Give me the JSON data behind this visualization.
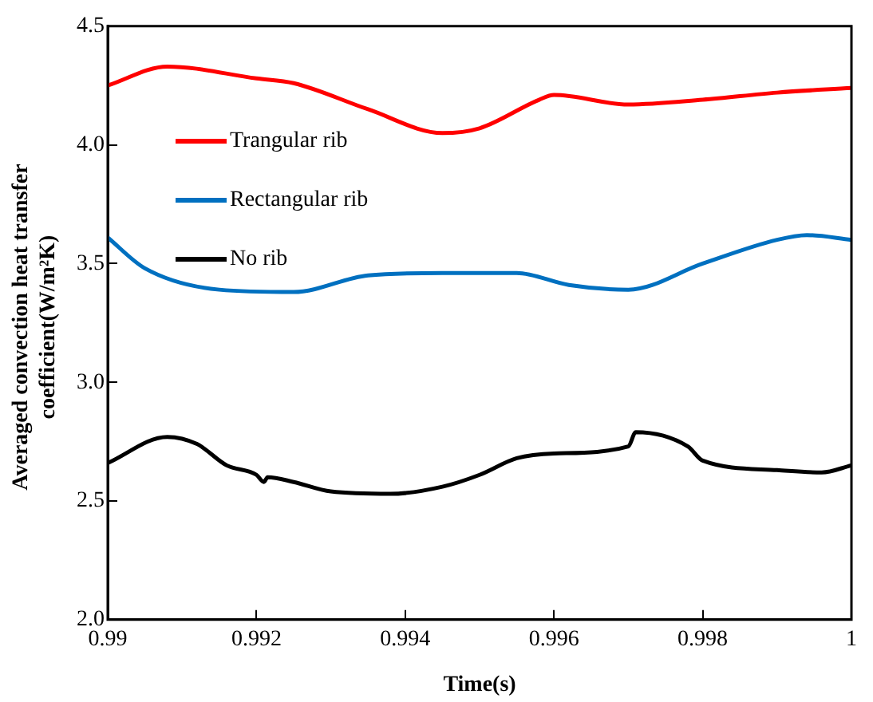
{
  "chart_data": {
    "type": "line",
    "xlabel": "Time(s)",
    "ylabel": "Averaged convection heat transfer coefficient(W/m²K)",
    "xlim": [
      0.99,
      1
    ],
    "xticks": [
      0.99,
      0.992,
      0.994,
      0.996,
      0.998,
      1
    ],
    "ylim": [
      2.0,
      4.5
    ],
    "yticks": [
      {
        "value": 2,
        "label": "2.0"
      },
      {
        "value": 2.5,
        "label": "2.5"
      },
      {
        "value": 3,
        "label": "3.0"
      },
      {
        "value": 3.5,
        "label": "3.5"
      },
      {
        "value": 4,
        "label": "4.0"
      },
      {
        "value": 4.5,
        "label": "4.5"
      }
    ],
    "grid": false,
    "legend": "top left",
    "marker": "none",
    "line_style": "solid",
    "series": [
      {
        "name": "Trangular rib",
        "color": "#ff0000",
        "x": [
          0.99,
          0.9908,
          0.992,
          0.9925,
          0.9935,
          0.9945,
          0.995,
          0.9958,
          0.996,
          0.997,
          0.998,
          0.999,
          1.0
        ],
        "values": [
          4.25,
          4.33,
          4.28,
          4.26,
          4.15,
          4.05,
          4.07,
          4.19,
          4.21,
          4.17,
          4.19,
          4.22,
          4.24
        ]
      },
      {
        "name": "Rectangular rib",
        "color": "#0070c0",
        "x": [
          0.99,
          0.9905,
          0.9915,
          0.9925,
          0.9935,
          0.9945,
          0.9955,
          0.9962,
          0.997,
          0.998,
          0.999,
          0.9994,
          1.0
        ],
        "values": [
          3.61,
          3.48,
          3.39,
          3.38,
          3.45,
          3.46,
          3.46,
          3.41,
          3.39,
          3.5,
          3.6,
          3.62,
          3.6
        ]
      },
      {
        "name": "No rib",
        "color": "#000000",
        "x": [
          0.99,
          0.9908,
          0.9912,
          0.9916,
          0.992,
          0.9921,
          0.99215,
          0.9925,
          0.993,
          0.9938,
          0.9945,
          0.995,
          0.9955,
          0.996,
          0.997,
          0.9971,
          0.9978,
          0.998,
          0.999,
          0.9996,
          1.0
        ],
        "values": [
          2.66,
          2.77,
          2.74,
          2.65,
          2.61,
          2.58,
          2.6,
          2.58,
          2.54,
          2.53,
          2.56,
          2.61,
          2.68,
          2.7,
          2.73,
          2.79,
          2.73,
          2.67,
          2.63,
          2.62,
          2.65
        ]
      }
    ]
  }
}
